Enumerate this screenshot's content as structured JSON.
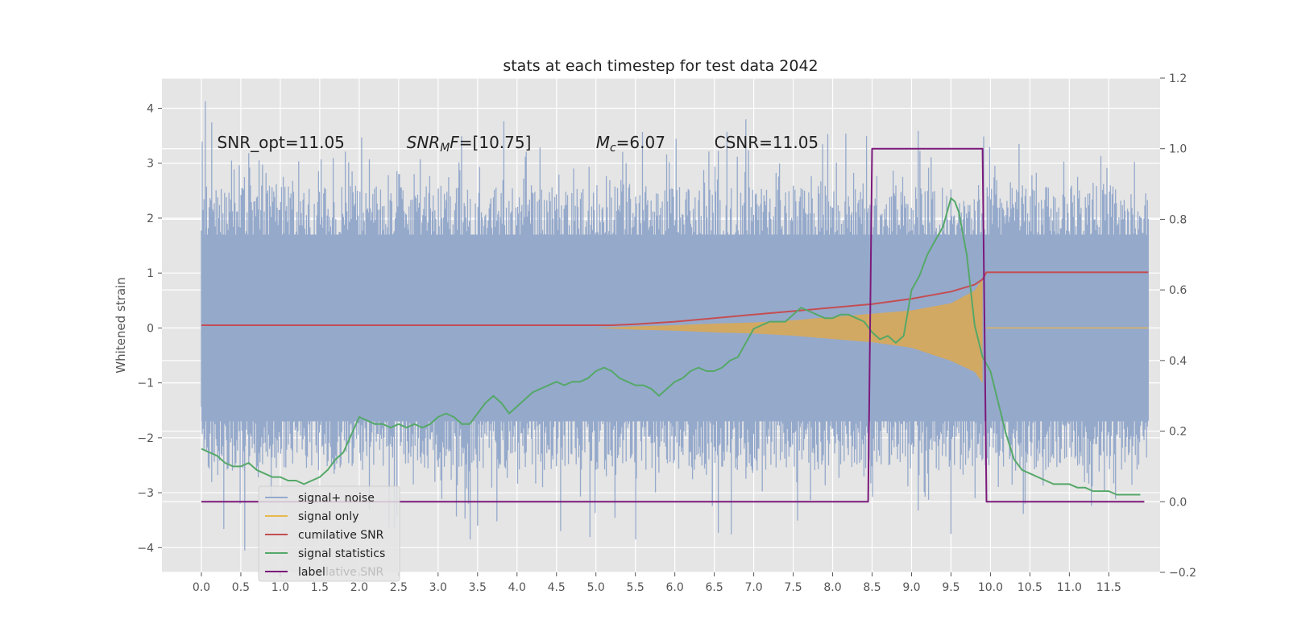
{
  "chart_data": {
    "type": "line",
    "title": "stats at each timestep for test data 2042",
    "ylabel": "Whitened strain",
    "xlabel": "",
    "xlim": [
      -0.5,
      12.15
    ],
    "ylim": [
      -4.45,
      4.55
    ],
    "y2lim": [
      -0.2,
      1.2
    ],
    "x_ticks": [
      "0.0",
      "0.5",
      "1.0",
      "1.5",
      "2.0",
      "2.5",
      "3.0",
      "3.5",
      "4.0",
      "4.5",
      "5.0",
      "5.5",
      "6.0",
      "6.5",
      "7.0",
      "7.5",
      "8.0",
      "8.5",
      "9.0",
      "9.5",
      "10.0",
      "10.5",
      "11.0",
      "11.5"
    ],
    "y_ticks": [
      "4",
      "3",
      "2",
      "1",
      "0",
      "−1",
      "−2",
      "−3",
      "−4"
    ],
    "y2_ticks": [
      "1.2",
      "1.0",
      "0.8",
      "0.6",
      "0.4",
      "0.2",
      "0.0",
      "−0.2"
    ],
    "grid": true,
    "legend_position": "lower-left",
    "annotations": [
      {
        "text": "SNR_opt=11.05",
        "x": 0.2
      },
      {
        "text": "F=[10.75]",
        "math_prefix": "SNR",
        "math_sub": "M",
        "x": 2.6
      },
      {
        "text": "=6.07",
        "math_prefix": "M",
        "math_sub": "c",
        "x": 5.0
      },
      {
        "text": "CSNR=11.05",
        "x": 6.5
      }
    ],
    "legend_ghost_text": "lative SNR",
    "noise_series": {
      "name": "signal+ noise",
      "x_start": 0.0,
      "x_end": 12.0,
      "mean_low": -1.7,
      "mean_high": 1.7,
      "peak_max": 4.13,
      "peak_min": -4.05
    },
    "series": [
      {
        "name": "signal only",
        "color": "#e8b94a",
        "envelope_x": [
          5.0,
          5.5,
          6.0,
          6.5,
          7.0,
          7.5,
          8.0,
          8.5,
          9.0,
          9.5,
          9.8,
          9.9
        ],
        "envelope_upper": [
          0.0,
          0.03,
          0.05,
          0.08,
          0.1,
          0.14,
          0.2,
          0.26,
          0.32,
          0.45,
          0.68,
          0.9
        ],
        "envelope_lower": [
          0.0,
          -0.03,
          -0.05,
          -0.08,
          -0.1,
          -0.14,
          -0.2,
          -0.26,
          -0.36,
          -0.6,
          -0.8,
          -1.0
        ]
      },
      {
        "name": "cumilative SNR",
        "color": "#c44e52",
        "axis": "right",
        "x": [
          0.0,
          1.0,
          2.0,
          3.0,
          4.0,
          5.0,
          5.2,
          5.5,
          6.0,
          6.5,
          7.0,
          7.5,
          8.0,
          8.5,
          9.0,
          9.5,
          9.8,
          9.9,
          9.95,
          12.0
        ],
        "y": [
          0.5,
          0.5,
          0.5,
          0.5,
          0.5,
          0.5,
          0.5,
          0.503,
          0.51,
          0.52,
          0.53,
          0.54,
          0.55,
          0.56,
          0.575,
          0.595,
          0.615,
          0.63,
          0.65,
          0.65
        ]
      },
      {
        "name": "signal statistics",
        "color": "#55a868",
        "axis": "right",
        "x": [
          0.0,
          0.1,
          0.2,
          0.3,
          0.4,
          0.5,
          0.6,
          0.7,
          0.8,
          0.9,
          1.0,
          1.1,
          1.2,
          1.3,
          1.4,
          1.5,
          1.6,
          1.7,
          1.8,
          1.9,
          2.0,
          2.1,
          2.2,
          2.3,
          2.4,
          2.5,
          2.6,
          2.7,
          2.8,
          2.9,
          3.0,
          3.1,
          3.2,
          3.3,
          3.4,
          3.5,
          3.6,
          3.7,
          3.8,
          3.9,
          4.0,
          4.1,
          4.2,
          4.3,
          4.4,
          4.5,
          4.6,
          4.7,
          4.8,
          4.9,
          5.0,
          5.1,
          5.2,
          5.3,
          5.4,
          5.5,
          5.6,
          5.7,
          5.8,
          5.9,
          6.0,
          6.1,
          6.2,
          6.3,
          6.4,
          6.5,
          6.6,
          6.7,
          6.8,
          6.9,
          7.0,
          7.1,
          7.2,
          7.3,
          7.4,
          7.5,
          7.6,
          7.7,
          7.8,
          7.9,
          8.0,
          8.1,
          8.2,
          8.3,
          8.4,
          8.5,
          8.6,
          8.7,
          8.8,
          8.9,
          9.0,
          9.1,
          9.2,
          9.3,
          9.4,
          9.5,
          9.55,
          9.6,
          9.7,
          9.8,
          9.9,
          10.0,
          10.1,
          10.2,
          10.3,
          10.4,
          10.5,
          10.6,
          10.7,
          10.8,
          10.9,
          11.0,
          11.1,
          11.2,
          11.3,
          11.4,
          11.5,
          11.6,
          11.7,
          11.8,
          11.9
        ],
        "y": [
          0.15,
          0.14,
          0.13,
          0.11,
          0.1,
          0.1,
          0.11,
          0.09,
          0.08,
          0.07,
          0.07,
          0.06,
          0.06,
          0.05,
          0.06,
          0.07,
          0.09,
          0.12,
          0.14,
          0.19,
          0.24,
          0.23,
          0.22,
          0.22,
          0.21,
          0.22,
          0.21,
          0.22,
          0.21,
          0.22,
          0.24,
          0.25,
          0.24,
          0.22,
          0.22,
          0.25,
          0.28,
          0.3,
          0.28,
          0.25,
          0.27,
          0.29,
          0.31,
          0.32,
          0.33,
          0.34,
          0.33,
          0.34,
          0.34,
          0.35,
          0.37,
          0.38,
          0.37,
          0.35,
          0.34,
          0.33,
          0.33,
          0.32,
          0.3,
          0.32,
          0.34,
          0.35,
          0.37,
          0.38,
          0.37,
          0.37,
          0.38,
          0.4,
          0.41,
          0.45,
          0.49,
          0.5,
          0.51,
          0.51,
          0.51,
          0.53,
          0.55,
          0.54,
          0.53,
          0.52,
          0.52,
          0.53,
          0.53,
          0.52,
          0.51,
          0.48,
          0.46,
          0.47,
          0.45,
          0.47,
          0.6,
          0.64,
          0.7,
          0.74,
          0.78,
          0.86,
          0.85,
          0.82,
          0.7,
          0.5,
          0.41,
          0.37,
          0.28,
          0.19,
          0.12,
          0.09,
          0.08,
          0.07,
          0.06,
          0.05,
          0.05,
          0.05,
          0.04,
          0.04,
          0.03,
          0.03,
          0.03,
          0.02,
          0.02,
          0.02,
          0.02
        ]
      },
      {
        "name": "label",
        "color": "#7b1a7b",
        "axis": "right",
        "x": [
          0.0,
          8.45,
          8.5,
          9.9,
          9.95,
          11.95
        ],
        "y": [
          0.0,
          0.0,
          1.0,
          1.0,
          0.0,
          0.0
        ]
      }
    ]
  }
}
